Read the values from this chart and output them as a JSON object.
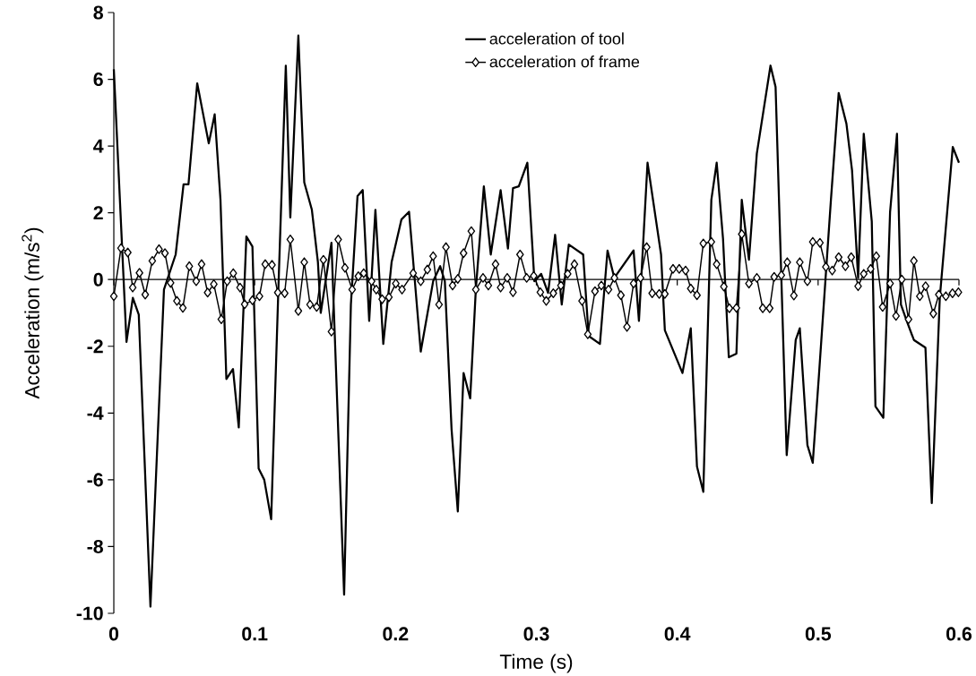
{
  "chart_data": {
    "type": "line",
    "xlabel": "Time (s)",
    "ylabel": "Acceleration (m/s$^{2}$)",
    "xlim": [
      0,
      0.6
    ],
    "ylim": [
      -10,
      8
    ],
    "xticks": [
      0,
      0.1,
      0.2,
      0.3,
      0.4,
      0.5,
      0.6
    ],
    "yticks": [
      -10,
      -8,
      -6,
      -4,
      -2,
      0,
      2,
      4,
      6,
      8
    ],
    "legend": "top",
    "series": [
      {
        "name": "acceleration of tool",
        "color": "#000000",
        "marker": "none",
        "x": [
          0.0,
          0.009,
          0.0135,
          0.0177,
          0.026,
          0.0356,
          0.0439,
          0.0495,
          0.053,
          0.0592,
          0.0674,
          0.0716,
          0.0757,
          0.0799,
          0.0846,
          0.0887,
          0.0941,
          0.0984,
          0.1028,
          0.1068,
          0.1117,
          0.117,
          0.1221,
          0.1253,
          0.131,
          0.1352,
          0.1406,
          0.1449,
          0.1469,
          0.1545,
          0.1635,
          0.1683,
          0.173,
          0.1767,
          0.1813,
          0.1857,
          0.1913,
          0.1972,
          0.2042,
          0.2096,
          0.2179,
          0.2267,
          0.2317,
          0.235,
          0.2398,
          0.2442,
          0.2483,
          0.253,
          0.257,
          0.2627,
          0.2676,
          0.2746,
          0.2798,
          0.2834,
          0.2875,
          0.2936,
          0.2986,
          0.3034,
          0.3083,
          0.3133,
          0.318,
          0.323,
          0.3332,
          0.3371,
          0.3451,
          0.3505,
          0.3553,
          0.369,
          0.3728,
          0.3789,
          0.3885,
          0.3912,
          0.4037,
          0.4096,
          0.414,
          0.4185,
          0.4242,
          0.428,
          0.4325,
          0.4366,
          0.442,
          0.4458,
          0.4509,
          0.4565,
          0.4662,
          0.4698,
          0.4777,
          0.4841,
          0.487,
          0.4924,
          0.4962,
          0.5006,
          0.5091,
          0.5146,
          0.5201,
          0.5241,
          0.5284,
          0.5324,
          0.5381,
          0.5407,
          0.5463,
          0.5511,
          0.556,
          0.5588,
          0.5629,
          0.568,
          0.5762,
          0.5807,
          0.5864,
          0.5956,
          0.6
        ],
        "values": [
          6.3,
          -1.87,
          -0.55,
          -1.05,
          -9.8,
          -0.3,
          0.75,
          2.85,
          2.85,
          5.88,
          4.08,
          4.95,
          2.4,
          -2.98,
          -2.68,
          -4.43,
          1.29,
          0.99,
          -5.66,
          -6.0,
          -7.18,
          -0.05,
          6.41,
          1.86,
          7.31,
          2.91,
          2.09,
          0.52,
          -1.0,
          1.1,
          -9.44,
          -0.75,
          2.5,
          2.68,
          -1.24,
          2.09,
          -1.93,
          0.52,
          1.8,
          2.03,
          -2.16,
          -0.05,
          0.4,
          -0.05,
          -4.5,
          -6.95,
          -2.8,
          -3.56,
          -0.3,
          2.79,
          0.75,
          2.68,
          0.93,
          2.74,
          2.79,
          3.5,
          -0.05,
          0.17,
          -0.4,
          1.34,
          -0.75,
          1.05,
          0.75,
          -1.69,
          -1.93,
          0.87,
          0.05,
          0.87,
          -1.24,
          3.5,
          0.75,
          -1.52,
          -2.8,
          -1.46,
          -5.6,
          -6.36,
          2.39,
          3.5,
          1.22,
          -2.33,
          -2.22,
          2.39,
          0.59,
          3.78,
          6.41,
          5.77,
          -5.26,
          -1.81,
          -1.46,
          -4.96,
          -5.49,
          -2.86,
          2.39,
          5.59,
          4.67,
          3.27,
          0.05,
          4.37,
          1.74,
          -3.8,
          -4.14,
          2.03,
          4.37,
          -0.75,
          -1.24,
          -1.81,
          -2.04,
          -6.7,
          -0.54,
          3.97,
          3.5
        ]
      },
      {
        "name": "acceleration of frame",
        "color": "#000000",
        "marker": "diamond",
        "x": [
          0.0,
          0.0051,
          0.0099,
          0.0134,
          0.0182,
          0.0223,
          0.0273,
          0.0321,
          0.0363,
          0.0403,
          0.0448,
          0.049,
          0.0536,
          0.0585,
          0.0623,
          0.0666,
          0.071,
          0.0763,
          0.0805,
          0.0848,
          0.0896,
          0.0929,
          0.0984,
          0.1034,
          0.1075,
          0.1123,
          0.1164,
          0.1213,
          0.1253,
          0.131,
          0.1352,
          0.1393,
          0.144,
          0.1488,
          0.1545,
          0.1593,
          0.1641,
          0.1692,
          0.1736,
          0.1774,
          0.183,
          0.1863,
          0.1905,
          0.1953,
          0.2002,
          0.2046,
          0.2125,
          0.2179,
          0.2226,
          0.2267,
          0.2309,
          0.2358,
          0.2405,
          0.2442,
          0.2483,
          0.2538,
          0.257,
          0.2621,
          0.2659,
          0.271,
          0.2746,
          0.2793,
          0.2834,
          0.2884,
          0.2931,
          0.2981,
          0.3028,
          0.307,
          0.312,
          0.3174,
          0.3222,
          0.327,
          0.3324,
          0.3365,
          0.3416,
          0.3461,
          0.3512,
          0.3554,
          0.36,
          0.3643,
          0.369,
          0.3739,
          0.3783,
          0.3822,
          0.3872,
          0.3912,
          0.397,
          0.4014,
          0.4059,
          0.4096,
          0.414,
          0.4185,
          0.4242,
          0.428,
          0.4331,
          0.437,
          0.442,
          0.4458,
          0.4509,
          0.4565,
          0.4607,
          0.4656,
          0.4688,
          0.4739,
          0.4781,
          0.4828,
          0.487,
          0.4924,
          0.4962,
          0.5013,
          0.5055,
          0.51,
          0.5146,
          0.5194,
          0.5235,
          0.5284,
          0.5324,
          0.5373,
          0.5413,
          0.5458,
          0.5511,
          0.5553,
          0.5594,
          0.5642,
          0.568,
          0.5722,
          0.5763,
          0.5818,
          0.5857,
          0.5907,
          0.5954,
          0.5996
        ],
        "values": [
          -0.5,
          0.94,
          0.81,
          -0.24,
          0.2,
          -0.45,
          0.56,
          0.91,
          0.79,
          -0.1,
          -0.64,
          -0.85,
          0.4,
          -0.05,
          0.46,
          -0.39,
          -0.14,
          -1.19,
          -0.05,
          0.19,
          -0.24,
          -0.74,
          -0.62,
          -0.5,
          0.46,
          0.44,
          -0.39,
          -0.41,
          1.2,
          -0.94,
          0.52,
          -0.75,
          -0.82,
          0.59,
          -1.56,
          1.2,
          0.35,
          -0.3,
          0.1,
          0.19,
          -0.05,
          -0.3,
          -0.59,
          -0.53,
          -0.12,
          -0.3,
          0.19,
          -0.05,
          0.3,
          0.7,
          -0.75,
          0.97,
          -0.18,
          0.02,
          0.79,
          1.45,
          -0.3,
          0.05,
          -0.18,
          0.46,
          -0.24,
          0.05,
          -0.38,
          0.75,
          0.05,
          0.11,
          -0.38,
          -0.64,
          -0.41,
          -0.18,
          0.17,
          0.46,
          -0.64,
          -1.64,
          -0.35,
          -0.18,
          -0.3,
          0.05,
          -0.47,
          -1.42,
          -0.12,
          0.05,
          0.97,
          -0.41,
          -0.43,
          -0.43,
          0.32,
          0.32,
          0.27,
          -0.27,
          -0.47,
          1.08,
          1.13,
          0.46,
          -0.21,
          -0.86,
          -0.85,
          1.36,
          -0.12,
          0.05,
          -0.86,
          -0.86,
          0.08,
          0.13,
          0.52,
          -0.48,
          0.52,
          -0.05,
          1.13,
          1.1,
          0.38,
          0.27,
          0.67,
          0.4,
          0.67,
          -0.2,
          0.17,
          0.32,
          0.7,
          -0.82,
          -0.12,
          -1.09,
          0.0,
          -1.19,
          0.56,
          -0.5,
          -0.2,
          -1.02,
          -0.45,
          -0.5,
          -0.41,
          -0.38
        ]
      }
    ]
  }
}
